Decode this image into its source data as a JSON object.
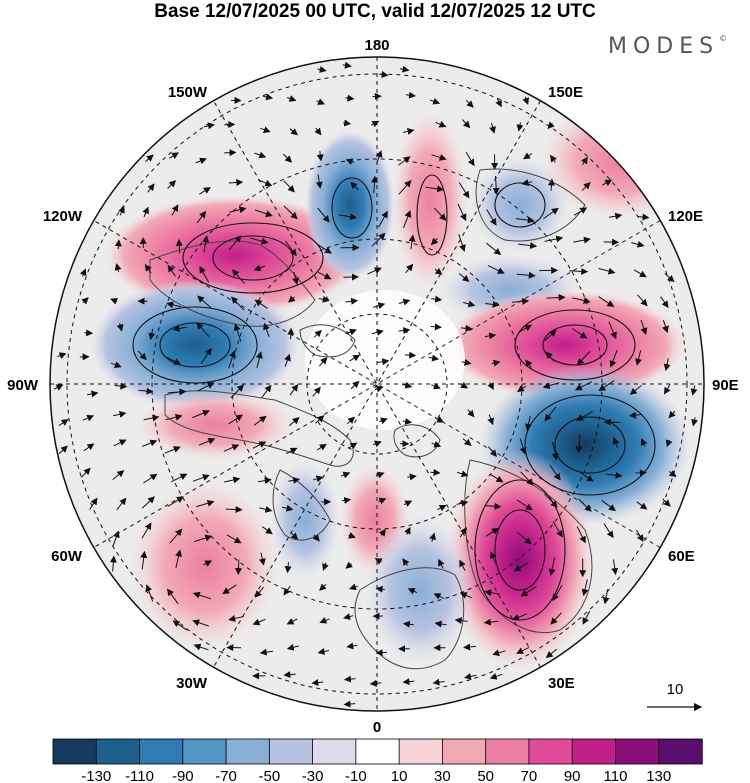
{
  "title": "Base 12/07/2025 00 UTC, valid 12/07/2025 12 UTC",
  "brand": "MODES",
  "brand_mark": "©",
  "longitude_labels": {
    "lon_180": "180",
    "lon_150e": "150E",
    "lon_120e": "120E",
    "lon_90e": "90E",
    "lon_60e": "60E",
    "lon_30e": "30E",
    "lon_0": "0",
    "lon_30w": "30W",
    "lon_60w": "60W",
    "lon_90w": "90W",
    "lon_120w": "120W",
    "lon_150w": "150W"
  },
  "vector_reference": {
    "label": "10"
  },
  "colorbar": {
    "colors": [
      "#153a5e",
      "#1d5f8d",
      "#2f7cb4",
      "#5296c6",
      "#88b0d6",
      "#b6c3e0",
      "#dcdcec",
      "#ffffff",
      "#f7d4d6",
      "#f2a9b6",
      "#ec7fa3",
      "#e04a98",
      "#c01f89",
      "#8e0d7c",
      "#5a0e6e"
    ],
    "ticks": [
      "-130",
      "-110",
      "-90",
      "-70",
      "-50",
      "-30",
      "-10",
      "10",
      "30",
      "50",
      "70",
      "90",
      "110",
      "130"
    ]
  },
  "map": {
    "projection": "north polar stereographic",
    "graticule_longitude_step_deg": 30,
    "colors": {
      "land_outline": "#444444",
      "graticule": "#111111",
      "vector": "#111111",
      "neutral_shading": "#ececec"
    }
  }
}
